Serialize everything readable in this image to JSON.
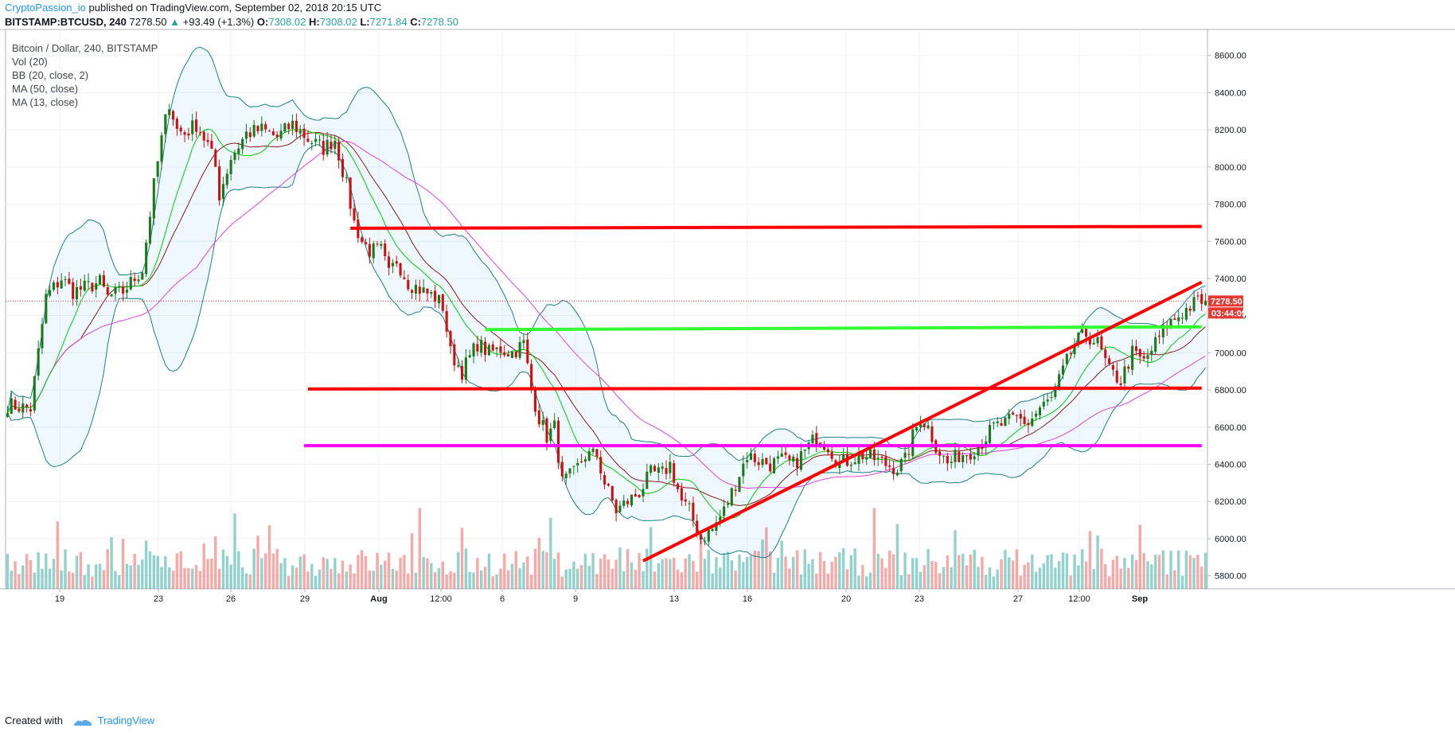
{
  "header": {
    "author": "CryptoPassion_io",
    "published": " published on TradingView.com, September 02, 2018 20:15 UTC",
    "symbol": "BITSTAMP:BTCUSD, 240",
    "last": "7278.50",
    "change_arrow": "▲",
    "change": "+93.49 (+1.3%)",
    "o_label": "O:",
    "o": "7308.02",
    "h_label": "H:",
    "h": "7308.02",
    "l_label": "L:",
    "l": "7271.84",
    "c_label": "C:",
    "c": "7278.50"
  },
  "legend": {
    "title": "Bitcoin / Dollar, 240, BITSTAMP",
    "vol": "Vol (20)",
    "bb": "BB (20, close, 2)",
    "ma50": "MA (50, close)",
    "ma13": "MA (13, close)"
  },
  "footer": {
    "created": "Created with",
    "brand": "TradingView"
  },
  "colors": {
    "up": "#26a69a",
    "down": "#ef5350",
    "candle": "#1e6b1e",
    "bb": "#1e7f87",
    "ma50": "#e040e0",
    "ma13": "#00cc00",
    "red_line": "#ff0000",
    "green_line": "#33ff33",
    "magenta_line": "#ff00ff"
  },
  "chart_data": {
    "type": "candlestick",
    "symbol": "BTCUSD",
    "timeframe": "240",
    "ylim": [
      5730,
      8740
    ],
    "y_ticks": [
      "8600.00",
      "8400.00",
      "8200.00",
      "8000.00",
      "7800.00",
      "7600.00",
      "7400.00",
      "7200.00",
      "7000.00",
      "6800.00",
      "6600.00",
      "6400.00",
      "6200.00",
      "6000.00",
      "5800.00"
    ],
    "x_ticks": [
      "19",
      "23",
      "26",
      "29",
      "Aug",
      "12:00",
      "6",
      "9",
      "13",
      "16",
      "20",
      "23",
      "27",
      "12:00",
      "Sep"
    ],
    "price_label": "7278.50",
    "countdown_label": "03:44:09",
    "last_price": 7278.5,
    "close_path": [
      [
        0,
        6720
      ],
      [
        6,
        6700
      ],
      [
        10,
        7300
      ],
      [
        14,
        7400
      ],
      [
        17,
        7330
      ],
      [
        20,
        7350
      ],
      [
        24,
        7380
      ],
      [
        26,
        7300
      ],
      [
        30,
        7330
      ],
      [
        35,
        7450
      ],
      [
        38,
        7900
      ],
      [
        40,
        8150
      ],
      [
        42,
        8350
      ],
      [
        44,
        8200
      ],
      [
        46,
        8180
      ],
      [
        49,
        8230
      ],
      [
        52,
        8120
      ],
      [
        54,
        8000
      ],
      [
        55,
        7850
      ],
      [
        58,
        8050
      ],
      [
        62,
        8180
      ],
      [
        66,
        8200
      ],
      [
        70,
        8160
      ],
      [
        74,
        8230
      ],
      [
        78,
        8150
      ],
      [
        82,
        8100
      ],
      [
        85,
        8150
      ],
      [
        88,
        7900
      ],
      [
        90,
        7700
      ],
      [
        92,
        7600
      ],
      [
        94,
        7550
      ],
      [
        97,
        7550
      ],
      [
        99,
        7420
      ],
      [
        101,
        7500
      ],
      [
        104,
        7380
      ],
      [
        108,
        7330
      ],
      [
        111,
        7300
      ],
      [
        113,
        7250
      ],
      [
        115,
        7000
      ],
      [
        118,
        6900
      ],
      [
        122,
        7050
      ],
      [
        125,
        7000
      ],
      [
        128,
        7020
      ],
      [
        131,
        7000
      ],
      [
        134,
        7050
      ],
      [
        136,
        6800
      ],
      [
        138,
        6650
      ],
      [
        140,
        6550
      ],
      [
        142,
        6600
      ],
      [
        144,
        6300
      ],
      [
        147,
        6350
      ],
      [
        150,
        6450
      ],
      [
        153,
        6450
      ],
      [
        155,
        6300
      ],
      [
        158,
        6150
      ],
      [
        161,
        6200
      ],
      [
        164,
        6250
      ],
      [
        167,
        6350
      ],
      [
        170,
        6350
      ],
      [
        172,
        6400
      ],
      [
        175,
        6200
      ],
      [
        177,
        6150
      ],
      [
        180,
        6000
      ],
      [
        183,
        6050
      ],
      [
        186,
        6150
      ],
      [
        189,
        6300
      ],
      [
        192,
        6450
      ],
      [
        195,
        6420
      ],
      [
        198,
        6400
      ],
      [
        201,
        6420
      ],
      [
        204,
        6400
      ],
      [
        207,
        6470
      ],
      [
        210,
        6550
      ],
      [
        213,
        6500
      ],
      [
        216,
        6400
      ],
      [
        219,
        6430
      ],
      [
        222,
        6450
      ],
      [
        225,
        6430
      ],
      [
        228,
        6400
      ],
      [
        231,
        6380
      ],
      [
        233,
        6420
      ],
      [
        235,
        6550
      ],
      [
        237,
        6650
      ],
      [
        239,
        6600
      ],
      [
        241,
        6500
      ],
      [
        244,
        6400
      ],
      [
        247,
        6450
      ],
      [
        250,
        6470
      ],
      [
        253,
        6520
      ],
      [
        256,
        6600
      ],
      [
        259,
        6620
      ],
      [
        262,
        6650
      ],
      [
        265,
        6620
      ],
      [
        268,
        6700
      ],
      [
        271,
        6750
      ],
      [
        274,
        6900
      ],
      [
        277,
        7050
      ],
      [
        280,
        7100
      ],
      [
        283,
        7050
      ],
      [
        286,
        6900
      ],
      [
        289,
        6850
      ],
      [
        292,
        7000
      ],
      [
        295,
        6950
      ],
      [
        298,
        7050
      ],
      [
        301,
        7150
      ],
      [
        304,
        7200
      ],
      [
        307,
        7250
      ],
      [
        309,
        7278
      ]
    ]
  },
  "annotations": [
    {
      "name": "resistance",
      "color": "#ff0000",
      "from": [
        89,
        7670
      ],
      "to": [
        310,
        7680
      ]
    },
    {
      "name": "support-green",
      "color": "#33ff33",
      "from": [
        124,
        7125
      ],
      "to": [
        310,
        7140
      ]
    },
    {
      "name": "support-red",
      "color": "#ff0000",
      "from": [
        78,
        6805
      ],
      "to": [
        310,
        6810
      ]
    },
    {
      "name": "support-magenta",
      "color": "#ff00ff",
      "from": [
        77,
        6500
      ],
      "to": [
        310,
        6500
      ]
    },
    {
      "name": "uptrend",
      "color": "#ff0000",
      "from": [
        165,
        5880
      ],
      "to": [
        310,
        7380
      ]
    }
  ]
}
